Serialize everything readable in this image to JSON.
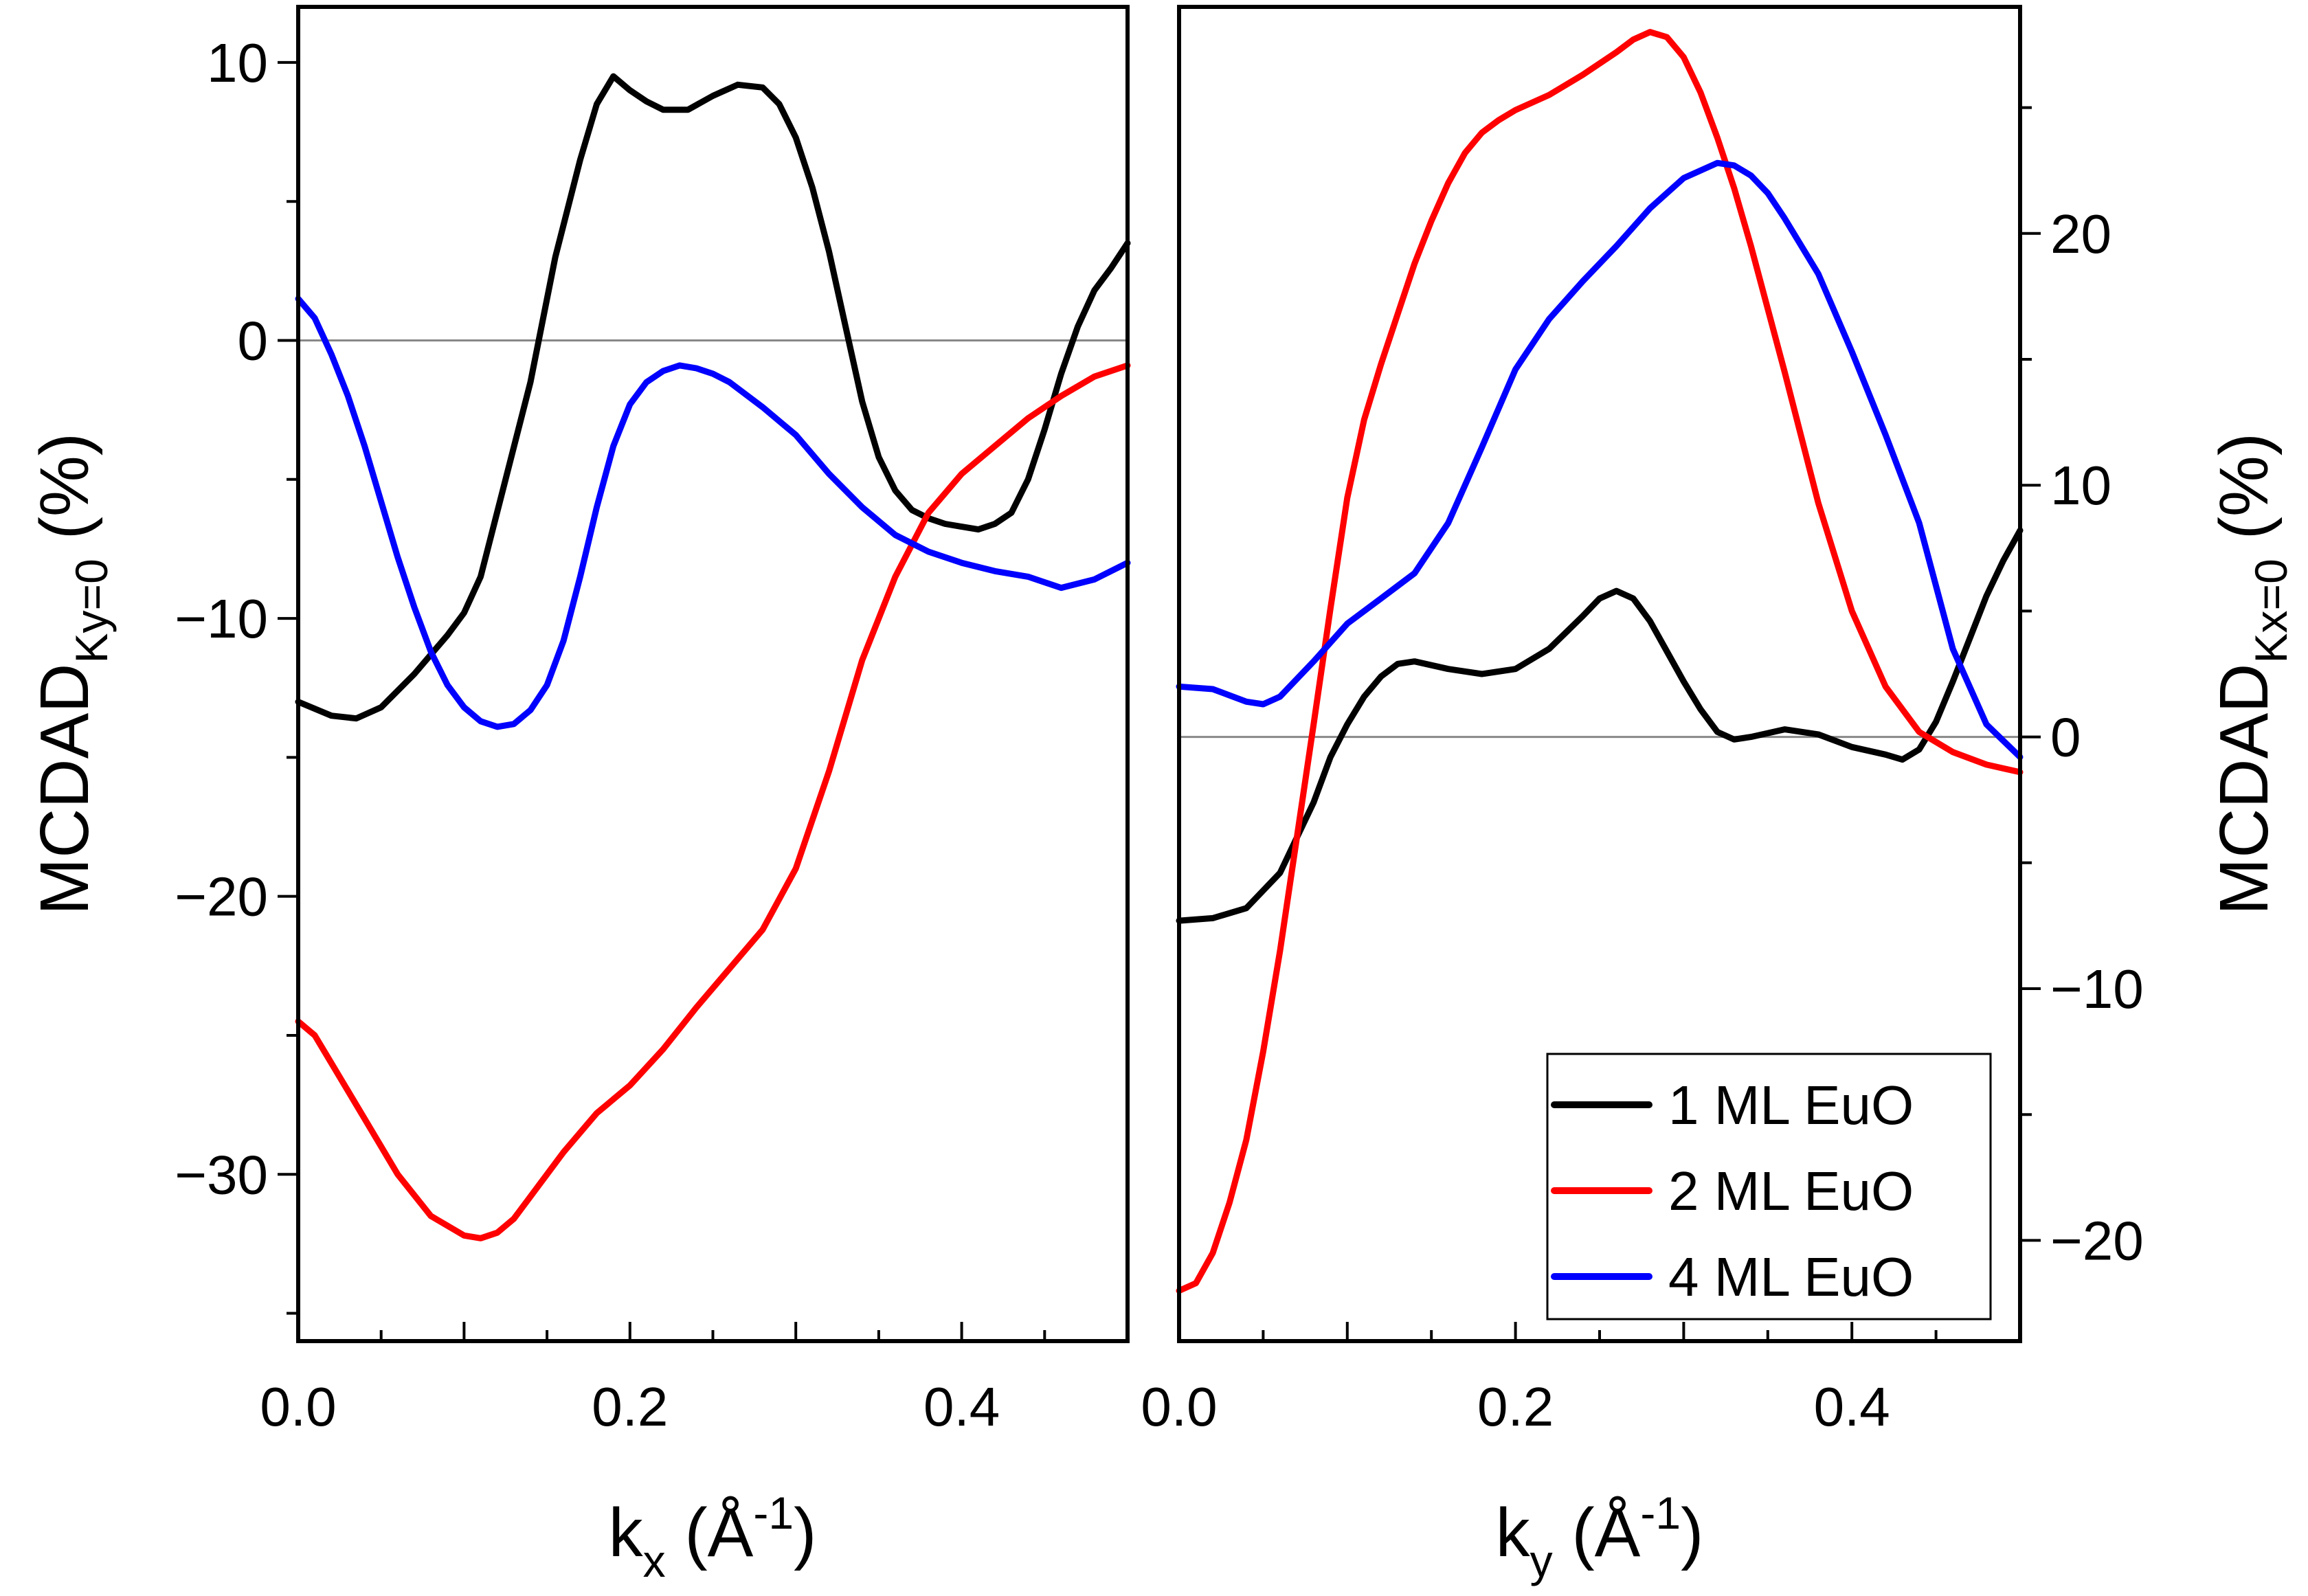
{
  "chart_data": [
    {
      "type": "line",
      "panel": "left",
      "xlabel": {
        "main": "k",
        "sub": "x",
        "rest": " (Å",
        "sup": "-1",
        "close": ")"
      },
      "ylabel": {
        "main": "MCDAD",
        "sub": "Ky=0",
        "rest": " (%)"
      },
      "xlim": [
        0,
        0.5
      ],
      "ylim": [
        -36,
        12
      ],
      "x_ticks": [
        0.0,
        0.2,
        0.4
      ],
      "x_tick_labels": [
        "0.0",
        "0.2",
        "0.4"
      ],
      "y_ticks": [
        10,
        0,
        -10,
        -20,
        -30
      ],
      "y_tick_labels": [
        "10",
        "0",
        "−10",
        "−20",
        "−30"
      ],
      "zero_line": true,
      "series": [
        {
          "name": "1 ML EuO",
          "color": "#000000",
          "x": [
            0,
            0.02,
            0.035,
            0.05,
            0.07,
            0.09,
            0.1,
            0.11,
            0.125,
            0.14,
            0.155,
            0.17,
            0.18,
            0.19,
            0.2,
            0.21,
            0.22,
            0.235,
            0.25,
            0.265,
            0.28,
            0.29,
            0.3,
            0.31,
            0.32,
            0.33,
            0.34,
            0.35,
            0.36,
            0.37,
            0.38,
            0.39,
            0.4,
            0.41,
            0.42,
            0.43,
            0.44,
            0.45,
            0.46,
            0.47,
            0.48,
            0.49,
            0.5
          ],
          "y": [
            -13,
            -13.5,
            -13.6,
            -13.2,
            -12,
            -10.6,
            -9.8,
            -8.5,
            -5,
            -1.5,
            3,
            6.5,
            8.5,
            9.5,
            9,
            8.6,
            8.3,
            8.3,
            8.8,
            9.2,
            9.1,
            8.5,
            7.3,
            5.5,
            3.2,
            0.5,
            -2.2,
            -4.2,
            -5.4,
            -6.1,
            -6.4,
            -6.6,
            -6.7,
            -6.8,
            -6.6,
            -6.2,
            -5,
            -3.2,
            -1.2,
            0.5,
            1.8,
            2.6,
            3.5
          ]
        },
        {
          "name": "2 ML EuO",
          "color": "#ff0000",
          "x": [
            0,
            0.01,
            0.02,
            0.04,
            0.06,
            0.08,
            0.1,
            0.11,
            0.12,
            0.13,
            0.14,
            0.16,
            0.18,
            0.2,
            0.22,
            0.24,
            0.26,
            0.28,
            0.3,
            0.32,
            0.34,
            0.36,
            0.38,
            0.4,
            0.42,
            0.44,
            0.46,
            0.48,
            0.5
          ],
          "y": [
            -24.5,
            -25,
            -26,
            -28,
            -30,
            -31.5,
            -32.2,
            -32.3,
            -32.1,
            -31.6,
            -30.8,
            -29.2,
            -27.8,
            -26.8,
            -25.5,
            -24,
            -22.6,
            -21.2,
            -19,
            -15.5,
            -11.5,
            -8.5,
            -6.2,
            -4.8,
            -3.8,
            -2.8,
            -2,
            -1.3,
            -0.9
          ]
        },
        {
          "name": "4 ML EuO",
          "color": "#0000ff",
          "x": [
            0,
            0.01,
            0.02,
            0.03,
            0.04,
            0.05,
            0.06,
            0.07,
            0.08,
            0.09,
            0.1,
            0.11,
            0.12,
            0.13,
            0.14,
            0.15,
            0.16,
            0.17,
            0.18,
            0.19,
            0.2,
            0.21,
            0.22,
            0.23,
            0.24,
            0.25,
            0.26,
            0.28,
            0.3,
            0.32,
            0.34,
            0.36,
            0.38,
            0.4,
            0.42,
            0.44,
            0.46,
            0.48,
            0.5
          ],
          "y": [
            1.5,
            0.8,
            -0.5,
            -2,
            -3.8,
            -5.8,
            -7.8,
            -9.6,
            -11.2,
            -12.4,
            -13.2,
            -13.7,
            -13.9,
            -13.8,
            -13.3,
            -12.4,
            -10.8,
            -8.5,
            -6,
            -3.8,
            -2.3,
            -1.5,
            -1.1,
            -0.9,
            -1,
            -1.2,
            -1.5,
            -2.4,
            -3.4,
            -4.8,
            -6,
            -7,
            -7.6,
            -8,
            -8.3,
            -8.5,
            -8.9,
            -8.6,
            -8
          ]
        }
      ]
    },
    {
      "type": "line",
      "panel": "right",
      "xlabel": {
        "main": "k",
        "sub": "y",
        "rest": " (Å",
        "sup": "-1",
        "close": ")"
      },
      "ylabel": {
        "main": "MCDAD",
        "sub": "Kx=0",
        "rest": " (%)"
      },
      "xlim": [
        0,
        0.5
      ],
      "ylim": [
        -24,
        29
      ],
      "x_ticks": [
        0.0,
        0.2,
        0.4
      ],
      "x_tick_labels": [
        "0.0",
        "0.2",
        "0.4"
      ],
      "y_ticks": [
        20,
        10,
        0,
        -10,
        -20
      ],
      "y_tick_labels": [
        "20",
        "10",
        "0",
        "−10",
        "−20"
      ],
      "zero_line": true,
      "legend": {
        "position": "bottom-right",
        "entries": [
          "1 ML EuO",
          "2 ML EuO",
          "4 ML EuO"
        ]
      },
      "series": [
        {
          "name": "1 ML EuO",
          "color": "#000000",
          "x": [
            0,
            0.02,
            0.04,
            0.06,
            0.08,
            0.09,
            0.1,
            0.11,
            0.12,
            0.13,
            0.14,
            0.16,
            0.18,
            0.2,
            0.22,
            0.24,
            0.25,
            0.26,
            0.27,
            0.28,
            0.29,
            0.3,
            0.31,
            0.32,
            0.33,
            0.34,
            0.36,
            0.38,
            0.4,
            0.42,
            0.43,
            0.44,
            0.45,
            0.46,
            0.47,
            0.48,
            0.49,
            0.5
          ],
          "y": [
            -7.3,
            -7.2,
            -6.8,
            -5.4,
            -2.6,
            -0.8,
            0.5,
            1.6,
            2.4,
            2.9,
            3.0,
            2.7,
            2.5,
            2.7,
            3.5,
            4.8,
            5.5,
            5.8,
            5.5,
            4.6,
            3.4,
            2.2,
            1.1,
            0.2,
            -0.1,
            0.0,
            0.3,
            0.1,
            -0.4,
            -0.7,
            -0.9,
            -0.5,
            0.6,
            2.2,
            3.9,
            5.6,
            7.0,
            8.2
          ]
        },
        {
          "name": "2 ML EuO",
          "color": "#ff0000",
          "x": [
            0,
            0.01,
            0.02,
            0.03,
            0.04,
            0.05,
            0.06,
            0.07,
            0.08,
            0.09,
            0.1,
            0.11,
            0.12,
            0.13,
            0.14,
            0.15,
            0.16,
            0.17,
            0.18,
            0.19,
            0.2,
            0.22,
            0.24,
            0.26,
            0.27,
            0.28,
            0.29,
            0.3,
            0.31,
            0.32,
            0.33,
            0.34,
            0.35,
            0.36,
            0.38,
            0.4,
            0.42,
            0.44,
            0.46,
            0.48,
            0.5
          ],
          "y": [
            -22,
            -21.7,
            -20.5,
            -18.5,
            -16,
            -12.5,
            -8.5,
            -4,
            0.5,
            5.1,
            9.5,
            12.6,
            14.8,
            16.8,
            18.8,
            20.5,
            22,
            23.2,
            24,
            24.5,
            24.9,
            25.5,
            26.3,
            27.2,
            27.7,
            28,
            27.8,
            27,
            25.6,
            23.8,
            21.8,
            19.5,
            17,
            14.5,
            9.3,
            5,
            2,
            0.2,
            -0.6,
            -1.1,
            -1.4
          ]
        },
        {
          "name": "4 ML EuO",
          "color": "#0000ff",
          "x": [
            0,
            0.02,
            0.04,
            0.05,
            0.06,
            0.08,
            0.1,
            0.12,
            0.14,
            0.16,
            0.18,
            0.2,
            0.22,
            0.24,
            0.26,
            0.28,
            0.3,
            0.32,
            0.33,
            0.34,
            0.35,
            0.36,
            0.38,
            0.4,
            0.42,
            0.44,
            0.46,
            0.48,
            0.5
          ],
          "y": [
            2,
            1.9,
            1.4,
            1.3,
            1.6,
            3,
            4.5,
            5.5,
            6.5,
            8.5,
            11.5,
            14.6,
            16.6,
            18.1,
            19.5,
            21,
            22.2,
            22.8,
            22.7,
            22.3,
            21.6,
            20.6,
            18.4,
            15.3,
            12,
            8.5,
            3.5,
            0.5,
            -0.8
          ]
        }
      ]
    }
  ]
}
